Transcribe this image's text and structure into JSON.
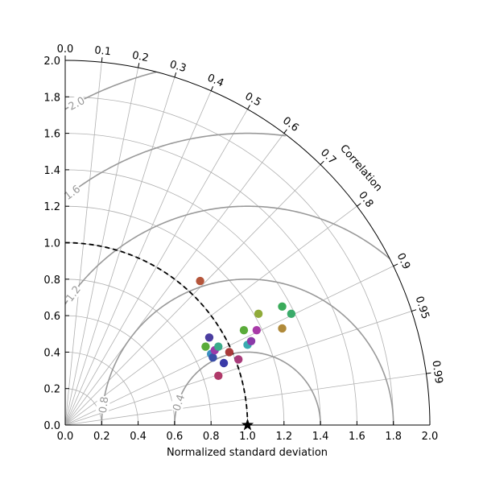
{
  "chart_data": {
    "type": "scatter",
    "subtype": "taylor-diagram",
    "xlabel": "Normalized standard deviation",
    "ylabel": "",
    "correlation_label": "Correlation",
    "std_range": [
      0,
      2
    ],
    "std_ticks": [
      "0.0",
      "0.2",
      "0.4",
      "0.6",
      "0.8",
      "1.0",
      "1.2",
      "1.4",
      "1.6",
      "1.8",
      "2.0"
    ],
    "correlation_ticks": [
      {
        "value": 0.0,
        "label": "0.0"
      },
      {
        "value": 0.1,
        "label": "0.1"
      },
      {
        "value": 0.2,
        "label": "0.2"
      },
      {
        "value": 0.3,
        "label": "0.3"
      },
      {
        "value": 0.4,
        "label": "0.4"
      },
      {
        "value": 0.5,
        "label": "0.5"
      },
      {
        "value": 0.6,
        "label": "0.6"
      },
      {
        "value": 0.7,
        "label": "0.7"
      },
      {
        "value": 0.8,
        "label": "0.8"
      },
      {
        "value": 0.9,
        "label": "0.9"
      },
      {
        "value": 0.95,
        "label": "0.95"
      },
      {
        "value": 0.99,
        "label": "0.99"
      }
    ],
    "rmsd_contours": [
      {
        "value": 0.4,
        "label": "0.4",
        "label_corr_angle_deg": 18
      },
      {
        "value": 0.8,
        "label": "0.8",
        "label_corr_angle_deg": 8
      },
      {
        "value": 1.2,
        "label": "1.2",
        "label_corr_angle_deg": 9
      },
      {
        "value": 1.6,
        "label": "1.6",
        "label_corr_angle_deg": 9
      },
      {
        "value": 2.0,
        "label": "2.0",
        "label_corr_angle_deg": 9
      }
    ],
    "reference": {
      "std": 1.0,
      "corr": 1.0
    },
    "grid": true,
    "colors": {
      "grid": "#b0b0b0",
      "rmsd": "#999999",
      "reference_arc": "#000000",
      "frame": "#000000"
    },
    "points": [
      {
        "x": 0.74,
        "y": 0.79,
        "color": "#b5553a"
      },
      {
        "x": 0.79,
        "y": 0.48,
        "color": "#4b3ea0"
      },
      {
        "x": 0.77,
        "y": 0.43,
        "color": "#5aab3a"
      },
      {
        "x": 0.8,
        "y": 0.39,
        "color": "#3a8fc0"
      },
      {
        "x": 0.81,
        "y": 0.37,
        "color": "#3a4ea8"
      },
      {
        "x": 0.82,
        "y": 0.41,
        "color": "#9a3aa8"
      },
      {
        "x": 0.84,
        "y": 0.43,
        "color": "#3aab8a"
      },
      {
        "x": 0.84,
        "y": 0.27,
        "color": "#b03a6a"
      },
      {
        "x": 0.87,
        "y": 0.34,
        "color": "#3a3aa8"
      },
      {
        "x": 0.9,
        "y": 0.4,
        "color": "#a83a3a"
      },
      {
        "x": 0.95,
        "y": 0.36,
        "color": "#a83a7a"
      },
      {
        "x": 0.98,
        "y": 0.52,
        "color": "#5aab3a"
      },
      {
        "x": 1.0,
        "y": 0.44,
        "color": "#3aaab0"
      },
      {
        "x": 1.02,
        "y": 0.46,
        "color": "#8a3aa8"
      },
      {
        "x": 1.05,
        "y": 0.52,
        "color": "#a83aa8"
      },
      {
        "x": 1.06,
        "y": 0.61,
        "color": "#90ab3a"
      },
      {
        "x": 1.19,
        "y": 0.65,
        "color": "#3aab5a"
      },
      {
        "x": 1.19,
        "y": 0.53,
        "color": "#b08a3a"
      },
      {
        "x": 1.24,
        "y": 0.61,
        "color": "#3aab6a"
      }
    ]
  }
}
